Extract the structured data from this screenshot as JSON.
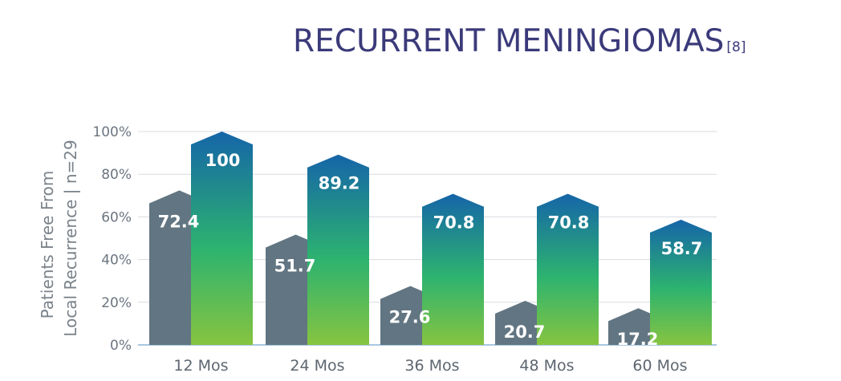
{
  "title": "RECURRENT MENINGIOMAS",
  "title_ref": "[8]",
  "ylabel_line1": "Patients Free From",
  "ylabel_line2": "Local Recurrence  |  n=29",
  "colors": {
    "title": "#3b3a7a",
    "gray_bar": "#627582",
    "gradient_top": "#1565a8",
    "gradient_mid": "#2db36f",
    "gradient_bottom": "#86c440",
    "grid": "#d7dbe0",
    "axis": "#a8c8e0"
  },
  "chart_data": {
    "type": "bar",
    "categories": [
      "12 Mos",
      "24 Mos",
      "36 Mos",
      "48 Mos",
      "60 Mos"
    ],
    "series": [
      {
        "values": [
          72.4,
          51.7,
          27.6,
          20.7,
          17.2
        ]
      },
      {
        "values": [
          100,
          89.2,
          70.8,
          70.8,
          58.7
        ]
      }
    ],
    "value_labels": [
      [
        "72.4",
        "51.7",
        "27.6",
        "20.7",
        "17.2"
      ],
      [
        "100",
        "89.2",
        "70.8",
        "70.8",
        "58.7"
      ]
    ],
    "yticks": [
      "0%",
      "20%",
      "40%",
      "60%",
      "80%",
      "100%"
    ],
    "ylim": [
      0,
      100
    ],
    "grid": true,
    "legend": "none"
  }
}
